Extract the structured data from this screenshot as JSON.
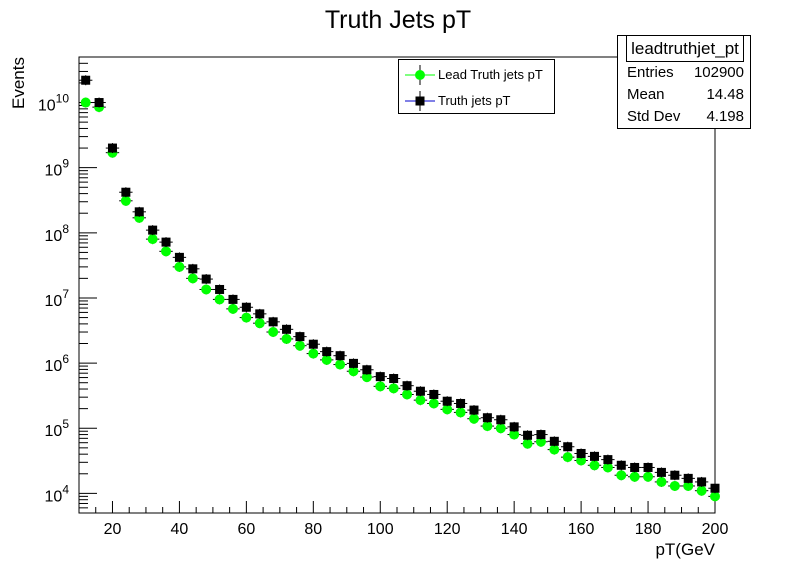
{
  "chart_data": {
    "type": "scatter",
    "title": "Truth Jets pT",
    "xlabel": "pT(GeV",
    "ylabel": "Events",
    "xlim": [
      10,
      200
    ],
    "ylim": [
      5000,
      50000000000
    ],
    "yscale": "log",
    "xticks": [
      20,
      40,
      60,
      80,
      100,
      120,
      140,
      160,
      180,
      200
    ],
    "yticks_exponents": [
      4,
      5,
      6,
      7,
      8,
      9,
      10
    ],
    "ytick_base": "10",
    "grid": false,
    "legend_position": "top-center",
    "series": [
      {
        "name": "Lead Truth jets pT",
        "color": "#00ff00",
        "marker": "circle",
        "x": [
          12,
          16,
          20,
          24,
          28,
          32,
          36,
          40,
          44,
          48,
          52,
          56,
          60,
          64,
          68,
          72,
          76,
          80,
          84,
          88,
          92,
          96,
          100,
          104,
          108,
          112,
          116,
          120,
          124,
          128,
          132,
          136,
          140,
          144,
          148,
          152,
          156,
          160,
          164,
          168,
          172,
          176,
          180,
          184,
          188,
          192,
          196,
          200
        ],
        "y": [
          10000000000,
          8500000000,
          1700000000,
          310000000,
          170000000,
          80000000,
          52000000,
          30000000,
          20000000,
          13500000,
          9500000,
          6800000,
          5000000,
          4100000,
          3000000,
          2350000,
          1850000,
          1400000,
          1120000,
          950000,
          750000,
          610000,
          440000,
          410000,
          330000,
          270000,
          240000,
          195000,
          175000,
          140000,
          108000,
          100000,
          80000,
          58000,
          62000,
          47000,
          36000,
          32000,
          27000,
          25000,
          19000,
          18000,
          18000,
          15000,
          13000,
          13000,
          11000,
          9000
        ]
      },
      {
        "name": "Truth jets pT",
        "color": "#000000",
        "marker": "square",
        "x": [
          12,
          16,
          20,
          24,
          28,
          32,
          36,
          40,
          44,
          48,
          52,
          56,
          60,
          64,
          68,
          72,
          76,
          80,
          84,
          88,
          92,
          96,
          100,
          104,
          108,
          112,
          116,
          120,
          124,
          128,
          132,
          136,
          140,
          144,
          148,
          152,
          156,
          160,
          164,
          168,
          172,
          176,
          180,
          184,
          188,
          192,
          196,
          200
        ],
        "y": [
          22000000000,
          10000000000,
          2000000000,
          420000000,
          210000000,
          110000000,
          72000000,
          42000000,
          28000000,
          19500000,
          13500000,
          9500000,
          7200000,
          5700000,
          4300000,
          3300000,
          2550000,
          1950000,
          1500000,
          1300000,
          990000,
          790000,
          620000,
          580000,
          450000,
          370000,
          330000,
          260000,
          240000,
          190000,
          145000,
          135000,
          105000,
          78000,
          80000,
          63000,
          52000,
          41000,
          37000,
          33000,
          27000,
          25000,
          25000,
          21000,
          19000,
          17000,
          15000,
          12000
        ]
      }
    ]
  },
  "stats_box": {
    "title": "leadtruthjet_pt",
    "rows": [
      {
        "label": "Entries",
        "value": "102900"
      },
      {
        "label": "Mean",
        "value": "14.48"
      },
      {
        "label": "Std Dev",
        "value": "4.198"
      }
    ]
  }
}
